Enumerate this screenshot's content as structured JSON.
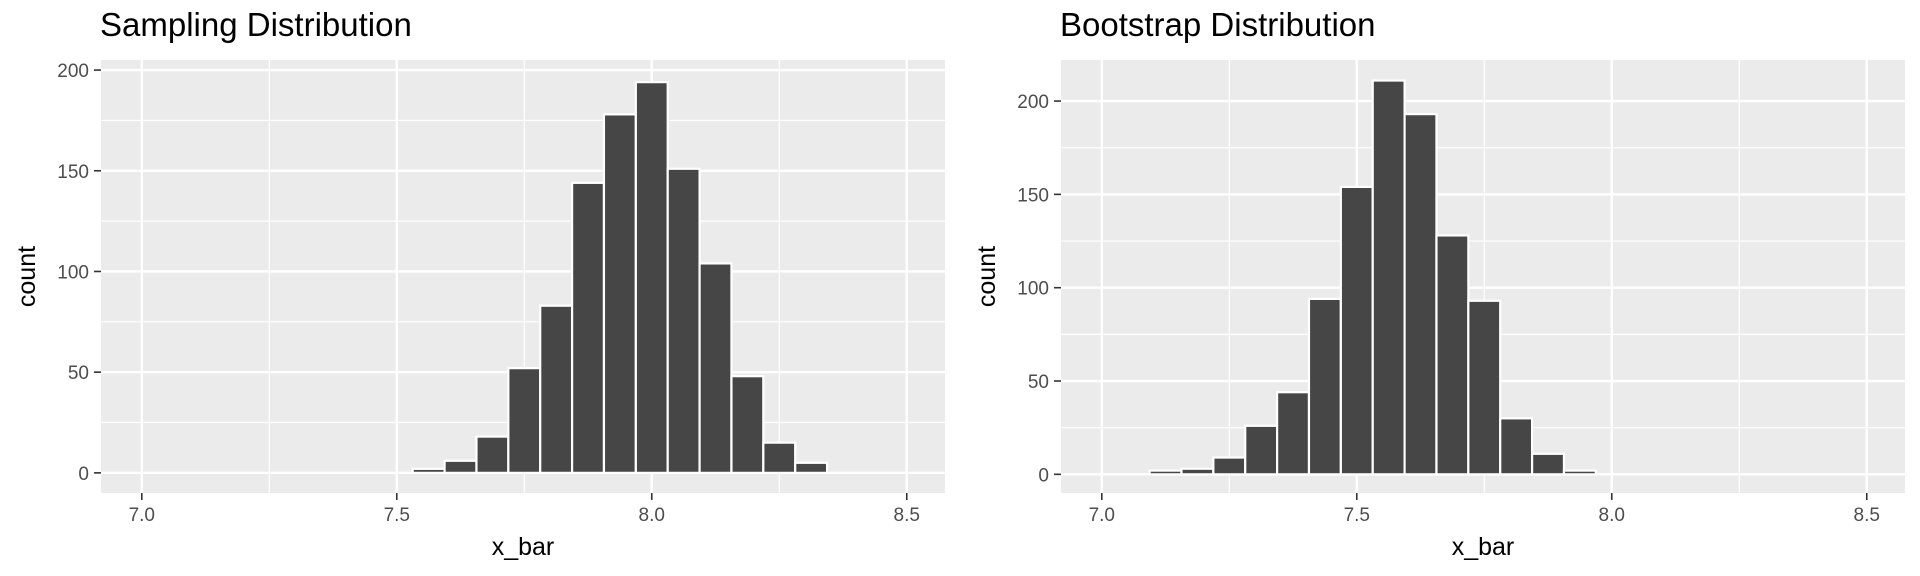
{
  "chart_data": [
    {
      "type": "bar",
      "title": "Sampling Distribution",
      "xlabel": "x_bar",
      "ylabel": "count",
      "xlim": [
        6.92,
        8.575
      ],
      "ylim": [
        -10,
        205
      ],
      "x_ticks": [
        7.0,
        7.5,
        8.0,
        8.5
      ],
      "x_tick_labels": [
        "7.0",
        "7.5",
        "8.0",
        "8.5"
      ],
      "y_ticks": [
        0,
        50,
        100,
        150,
        200
      ],
      "y_tick_labels": [
        "0",
        "50",
        "100",
        "150",
        "200"
      ],
      "grid": true,
      "bin_width": 0.0625,
      "bin_centers": [
        7.5625,
        7.625,
        7.6875,
        7.75,
        7.8125,
        7.875,
        7.9375,
        8.0,
        8.0625,
        8.125,
        8.1875,
        8.25,
        8.3125
      ],
      "values": [
        2,
        6,
        18,
        52,
        83,
        144,
        178,
        194,
        151,
        104,
        48,
        15,
        5
      ]
    },
    {
      "type": "bar",
      "title": "Bootstrap Distribution",
      "xlabel": "x_bar",
      "ylabel": "count",
      "xlim": [
        6.92,
        8.575
      ],
      "ylim": [
        -10,
        222
      ],
      "x_ticks": [
        7.0,
        7.5,
        8.0,
        8.5
      ],
      "x_tick_labels": [
        "7.0",
        "7.5",
        "8.0",
        "8.5"
      ],
      "y_ticks": [
        0,
        50,
        100,
        150,
        200
      ],
      "y_tick_labels": [
        "0",
        "50",
        "100",
        "150",
        "200"
      ],
      "grid": true,
      "bin_width": 0.0625,
      "bin_centers": [
        7.125,
        7.1875,
        7.25,
        7.3125,
        7.375,
        7.4375,
        7.5,
        7.5625,
        7.625,
        7.6875,
        7.75,
        7.8125,
        7.875,
        7.9375
      ],
      "values": [
        2,
        3,
        9,
        26,
        44,
        94,
        154,
        211,
        193,
        128,
        93,
        30,
        11,
        2
      ]
    }
  ]
}
